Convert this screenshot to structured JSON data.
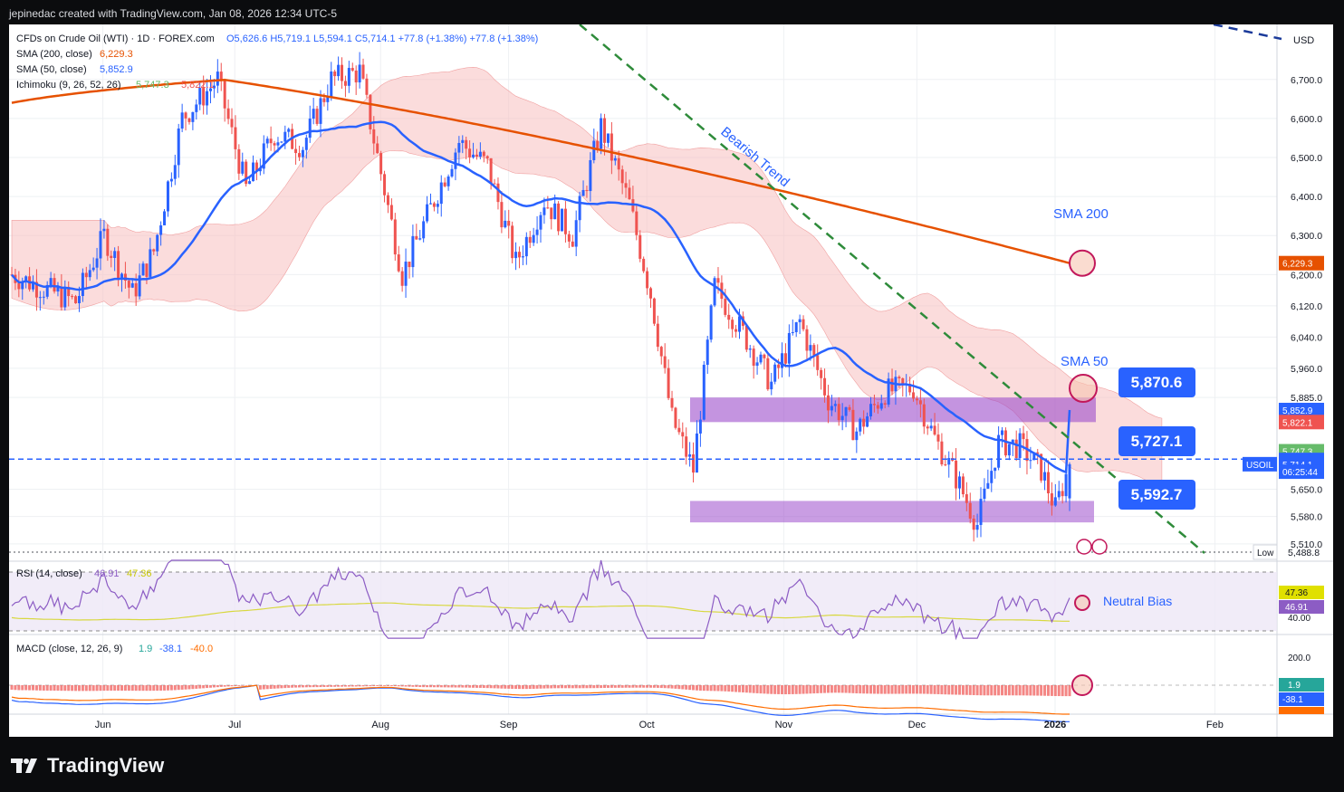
{
  "header": {
    "created_by": "jepinedac created with TradingView.com, Jan 08, 2026 12:34 UTC-5"
  },
  "footer": {
    "brand": "TradingView"
  },
  "colors": {
    "up": "#2962ff",
    "down": "#ef5350",
    "sma50": "#2962ff",
    "sma200": "#e65100",
    "cloud_bear": "#f8bfbf",
    "cloud_bull": "#bfe5c6",
    "zone": "#9c4dcc",
    "label": "#2962ff",
    "trend": "#2e8b3a",
    "rsi": "#8c5cc4",
    "rsi_ma": "#d8d840",
    "macd": "#2962ff",
    "signal": "#ff6d00"
  },
  "chart_data": {
    "type": "candlestick",
    "symbol": "CFDs on Crude Oil (WTI) · 1D · FOREX.com",
    "quote": {
      "open": "O5,626.6",
      "high": "H5,719.1",
      "low": "L5,594.1",
      "close": "C5,714.1",
      "change": "+77.8 (+1.38%)",
      "change2": "+77.8 (+1.38%)"
    },
    "currency": "USD",
    "indicators": [
      {
        "label": "SMA (200, close)",
        "value": "6,229.3",
        "color": "#e65100"
      },
      {
        "label": "SMA (50, close)",
        "value": "5,852.9",
        "color": "#2962ff"
      },
      {
        "label": "Ichimoku (9, 26, 52, 26)",
        "value": "5,747.3",
        "value2": "5,822.1",
        "color": "#66bb6a",
        "color2": "#ef5350"
      }
    ],
    "price_axis": {
      "ticks": [
        "6,700.0",
        "6,600.0",
        "6,500.0",
        "6,400.0",
        "6,300.0",
        "6,200.0",
        "6,120.0",
        "6,040.0",
        "5,960.0",
        "5,885.0",
        "5,650.0",
        "5,580.0",
        "5,510.0"
      ],
      "tick_values": [
        6700,
        6600,
        6500,
        6400,
        6300,
        6200,
        6120,
        6040,
        5960,
        5885,
        5650,
        5580,
        5510
      ],
      "tags": [
        {
          "text": "6,229.3",
          "value": 6229.3,
          "color": "#e65100"
        },
        {
          "text": "5,852.9",
          "value": 5852.9,
          "color": "#2962ff"
        },
        {
          "text": "5,822.1",
          "value": 5822.1,
          "color": "#ef5350"
        },
        {
          "text": "5,747.3",
          "value": 5747.3,
          "color": "#66bb6a"
        },
        {
          "text": "5,725.0",
          "value": 5725.0,
          "color": "#2962ff"
        },
        {
          "text": "5,714.1",
          "value": 5714.1,
          "color": "#2962ff"
        },
        {
          "text": "06:25:44",
          "value": 5695,
          "color": "#2962ff"
        }
      ],
      "symbol_tag": "USOIL",
      "low_label": "Low",
      "low_value": "5,488.8"
    },
    "x_axis": {
      "ticks": [
        "Jun",
        "Jul",
        "Aug",
        "Sep",
        "Oct",
        "Nov",
        "Dec",
        "2026",
        "Feb"
      ]
    },
    "candles": [],
    "annotations": {
      "sma200_label": "SMA 200",
      "sma50_label": "SMA 50",
      "bearish_trend": "Bearish Trend",
      "level_upper": "5,870.6",
      "level_mid": "5,727.1",
      "level_lower": "5,592.7",
      "neutral_bias": "Neutral Bias",
      "resistance_zone": [
        5822,
        5885
      ],
      "support_zone": [
        5565,
        5620
      ]
    },
    "rsi": {
      "label": "RSI (14, close)",
      "value": "46.91",
      "ma_value": "47.36",
      "axis": [
        "40.00"
      ]
    },
    "macd": {
      "label": "MACD (close, 12, 26, 9)",
      "hist": "1.9",
      "macd": "-38.1",
      "signal": "-40.0",
      "axis": [
        "200.0"
      ]
    }
  }
}
